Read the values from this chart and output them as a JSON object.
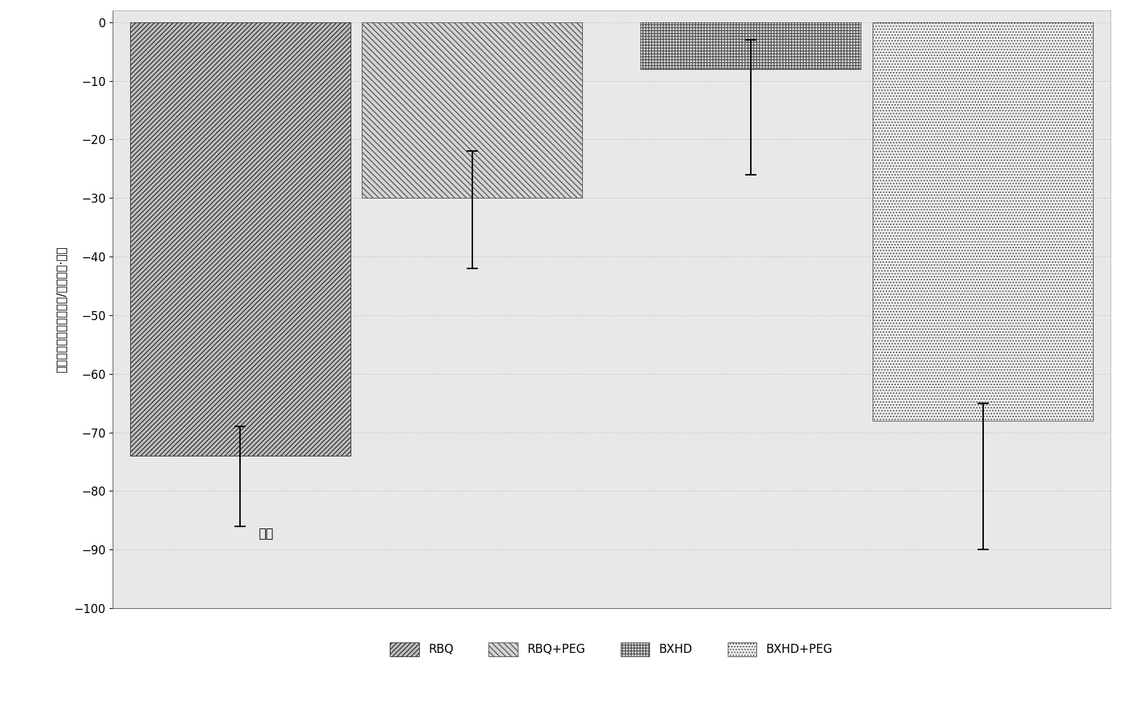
{
  "categories": [
    "RBQ",
    "RBQ+PEG",
    "BXHD",
    "BXHD+PEG"
  ],
  "values": [
    -74,
    -30,
    -8,
    -68
  ],
  "errors_up": [
    5,
    8,
    5,
    3
  ],
  "errors_down": [
    12,
    12,
    18,
    22
  ],
  "ylabel": "钔离子平均流速（皮摩尔/平方厘米·秒）",
  "annotation": "内流",
  "ylim": [
    -100,
    2
  ],
  "yticks": [
    0,
    -10,
    -20,
    -30,
    -40,
    -50,
    -60,
    -70,
    -80,
    -90,
    -100
  ],
  "legend_labels": [
    "RBQ",
    "RBQ+PEG",
    "BXHD",
    "BXHD+PEG"
  ],
  "background_color": "#e8e8e8",
  "title_fontsize": 12,
  "axis_fontsize": 12,
  "legend_fontsize": 12
}
